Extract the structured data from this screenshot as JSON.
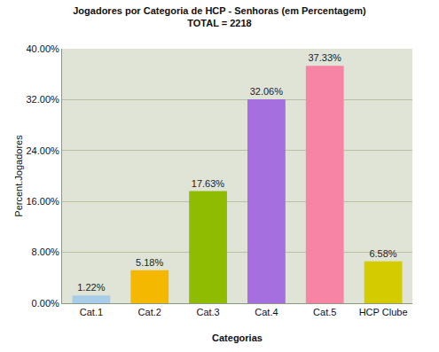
{
  "chart_data": {
    "type": "bar",
    "title": "Jogadores por Categoria de HCP - Senhoras (em Percentagem)",
    "subtitle": "TOTAL = 2218",
    "x_label": "Categorias",
    "y_label": "Percent.Jogadores",
    "categories": [
      "Cat.1",
      "Cat.2",
      "Cat.3",
      "Cat.4",
      "Cat.5",
      "HCP Clube"
    ],
    "values": [
      1.22,
      5.18,
      17.63,
      32.06,
      37.33,
      6.58
    ],
    "value_labels": [
      "1.22%",
      "5.18%",
      "17.63%",
      "32.06%",
      "37.33%",
      "6.58%"
    ],
    "colors": [
      "#a8cde8",
      "#f5b800",
      "#8fbc00",
      "#a66fdf",
      "#f783a5",
      "#d4cc00"
    ],
    "ylim": [
      0,
      40
    ],
    "yticks": [
      {
        "value": 0,
        "label": "0.00%"
      },
      {
        "value": 8,
        "label": "8.00%"
      },
      {
        "value": 16,
        "label": "16.00%"
      },
      {
        "value": 24,
        "label": "24.00%"
      },
      {
        "value": 32,
        "label": "32.00%"
      },
      {
        "value": 40,
        "label": "40.00%"
      }
    ],
    "grid": true,
    "data_labels": true
  }
}
